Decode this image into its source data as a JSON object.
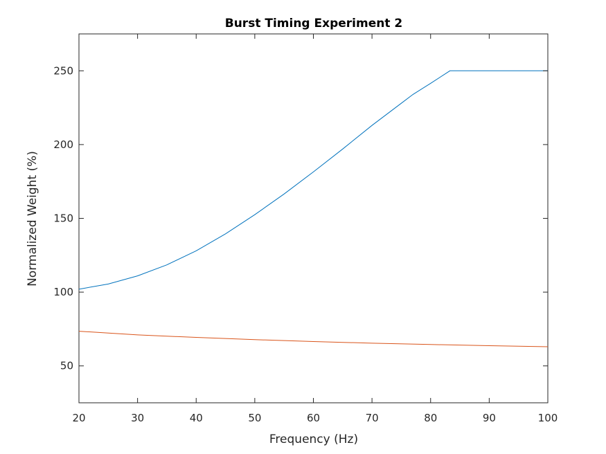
{
  "chart_data": {
    "type": "line",
    "title": "Burst Timing Experiment 2",
    "xlabel": "Frequency (Hz)",
    "ylabel": "Normalized Weight (%)",
    "xlim": [
      20,
      100
    ],
    "ylim": [
      25,
      275
    ],
    "xticks": [
      20,
      30,
      40,
      50,
      60,
      70,
      80,
      90,
      100
    ],
    "yticks": [
      50,
      100,
      150,
      200,
      250
    ],
    "grid": false,
    "legend": "none",
    "series": [
      {
        "color": "#0072BD",
        "x": [
          20,
          25,
          30,
          35,
          40,
          45,
          50,
          55,
          60,
          65,
          70,
          75,
          77,
          80,
          83.3,
          85,
          90,
          95,
          100
        ],
        "y": [
          102,
          105.5,
          111,
          118.5,
          128,
          139.5,
          152.5,
          166.5,
          181.5,
          197,
          213,
          228,
          234,
          241.5,
          250,
          250,
          250,
          250,
          250
        ]
      },
      {
        "color": "#D95319",
        "x": [
          20,
          30,
          40,
          50,
          60,
          70,
          80,
          90,
          100
        ],
        "y": [
          73.5,
          71,
          69.3,
          67.8,
          66.5,
          65.4,
          64.5,
          63.7,
          63
        ]
      }
    ]
  }
}
